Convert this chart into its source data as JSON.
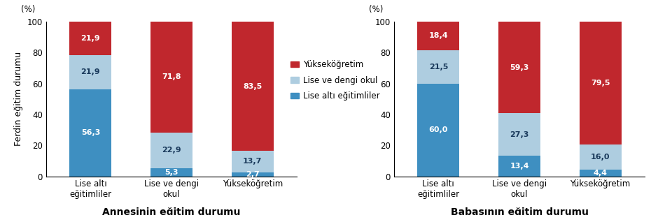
{
  "chart1": {
    "title": "Annesinin eğitim durumu",
    "ylabel": "Ferdin eğitim durumu",
    "categories": [
      "Lise altı\neğitimliler",
      "Lise ve dengi\nokul",
      "Yükseköğretim"
    ],
    "blue": [
      56.3,
      5.3,
      2.7
    ],
    "lightblue": [
      21.9,
      22.9,
      13.7
    ],
    "red": [
      21.9,
      71.8,
      83.5
    ]
  },
  "chart2": {
    "title": "Babasının eğitim durumu",
    "categories": [
      "Lise altı\neğitimliler",
      "Lise ve dengi\nokul",
      "Yükseköğretim"
    ],
    "blue": [
      60.0,
      13.4,
      4.4
    ],
    "lightblue": [
      21.5,
      27.3,
      16.0
    ],
    "red": [
      18.4,
      59.3,
      79.5
    ]
  },
  "legend_labels": [
    "Yükseköğretim",
    "Lise ve dengi okul",
    "Lise altı eğitimliler"
  ],
  "color_blue": "#3E8FC1",
  "color_lightblue": "#AECDE0",
  "color_red": "#C0272D",
  "ylabel_unit": "(%)",
  "ylim": [
    0,
    100
  ],
  "yticks": [
    0,
    20,
    40,
    60,
    80,
    100
  ],
  "label_color_dark": "#1a3a5c",
  "bar_width": 0.52
}
